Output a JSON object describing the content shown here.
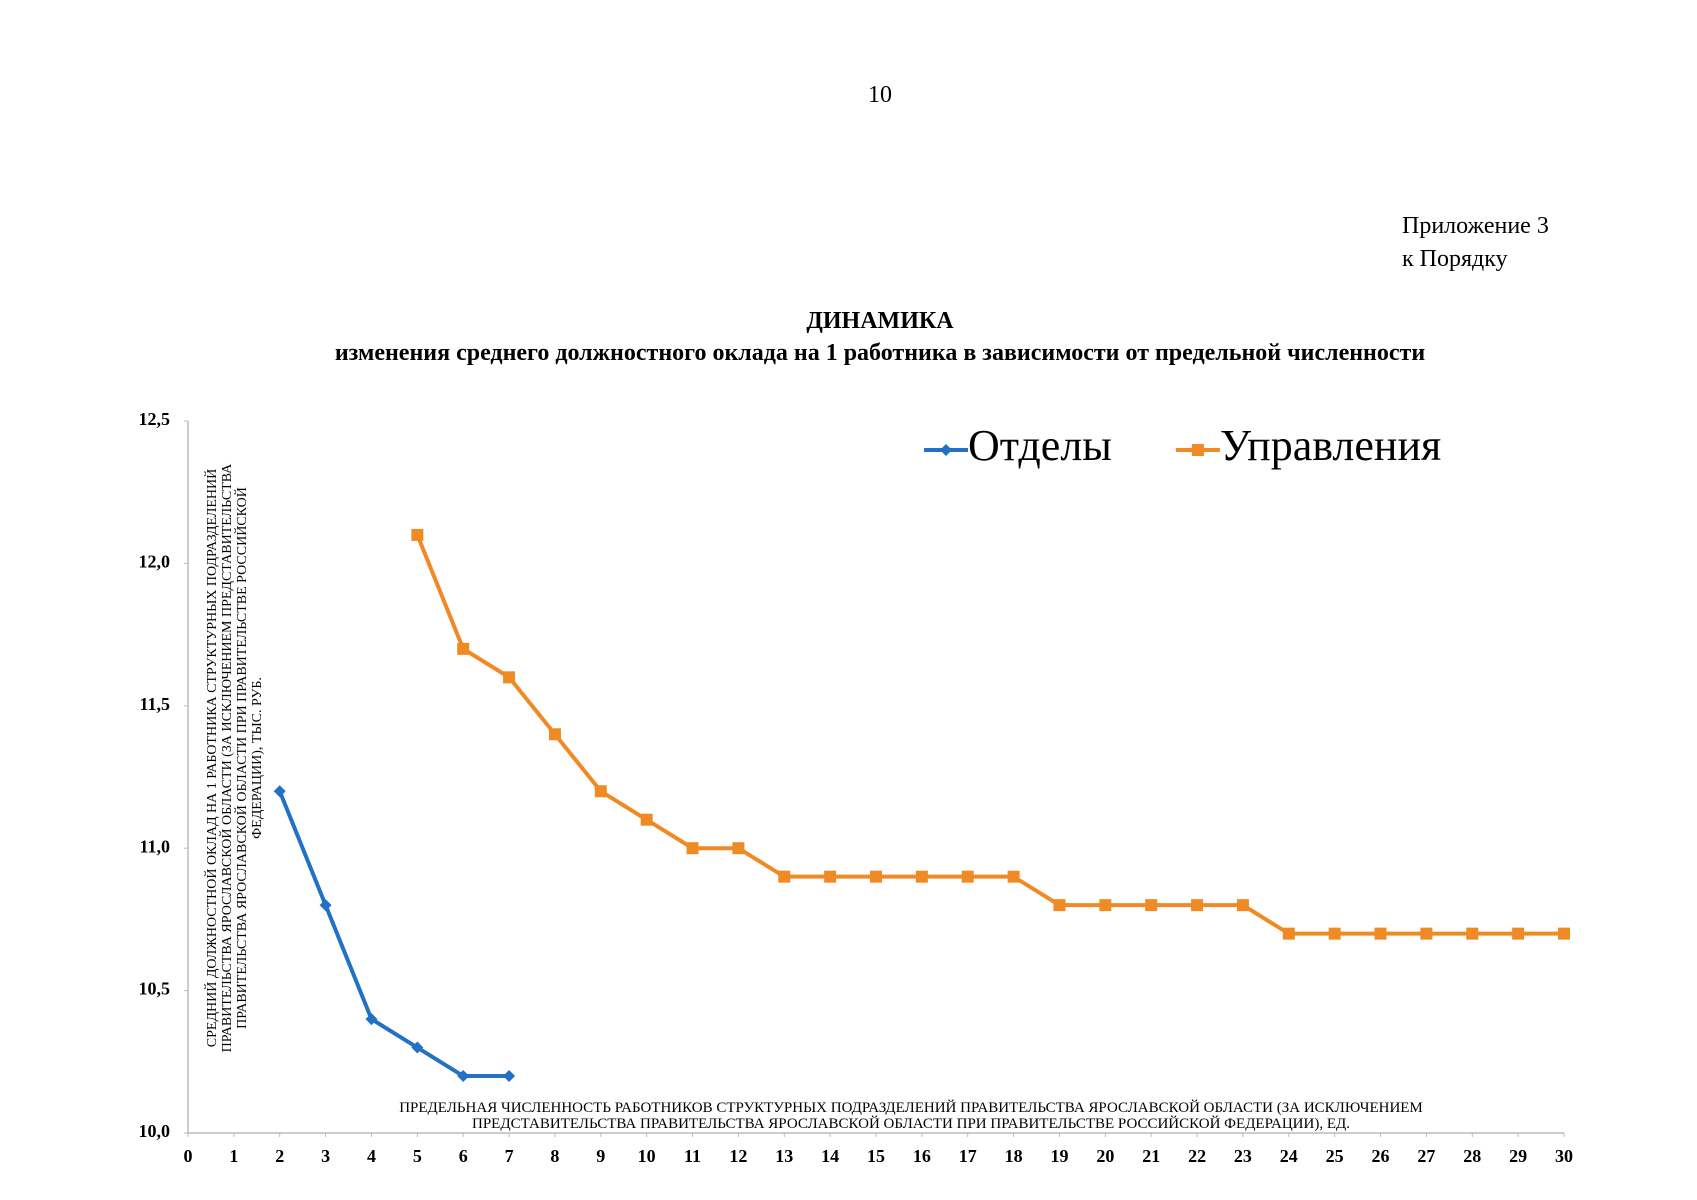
{
  "page_number": "10",
  "appendix": [
    "Приложение 3",
    "к Порядку"
  ],
  "chart_data": {
    "type": "line",
    "title": "ДИНАМИКА",
    "subtitle": "изменения среднего должностного оклада на 1 работника в зависимости от предельной численности",
    "ylabel": "СРЕДНИЙ ДОЛЖНОСТНОЙ ОКЛАД НА 1 РАБОТНИКА СТРУКТУРНЫХ ПОДРАЗДЕЛЕНИЙ ПРАВИТЕЛЬСТВА ЯРОСЛАВСКОЙ ОБЛАСТИ (ЗА ИСКЛЮЧЕНИЕМ ПРЕДСТАВИТЕЛЬСТВА ПРАВИТЕЛЬСТВА ЯРОСЛАВСКОЙ ОБЛАСТИ ПРИ ПРАВИТЕЛЬСТВЕ РОССИЙСКОЙ ФЕДЕРАЦИИ), ТЫС. РУБ.",
    "xlabel": "ПРЕДЕЛЬНАЯ ЧИСЛЕННОСТЬ РАБОТНИКОВ СТРУКТУРНЫХ ПОДРАЗДЕЛЕНИЙ ПРАВИТЕЛЬСТВА ЯРОСЛАВСКОЙ ОБЛАСТИ (ЗА ИСКЛЮЧЕНИЕМ ПРЕДСТАВИТЕЛЬСТВА ПРАВИТЕЛЬСТВА ЯРОСЛАВСКОЙ ОБЛАСТИ ПРИ ПРАВИТЕЛЬСТВЕ РОССИЙСКОЙ ФЕДЕРАЦИИ), ЕД.",
    "xlim": [
      0,
      30
    ],
    "xticks": [
      0,
      1,
      2,
      3,
      4,
      5,
      6,
      7,
      8,
      9,
      10,
      11,
      12,
      13,
      14,
      15,
      16,
      17,
      18,
      19,
      20,
      21,
      22,
      23,
      24,
      25,
      26,
      27,
      28,
      29,
      30
    ],
    "ylim": [
      10,
      12.5
    ],
    "yticks": [
      {
        "value": 10,
        "label": "10,0"
      },
      {
        "value": 10.5,
        "label": "10,5"
      },
      {
        "value": 11,
        "label": "11,0"
      },
      {
        "value": 11.5,
        "label": "11,5"
      },
      {
        "value": 12,
        "label": "12,0"
      },
      {
        "value": 12.5,
        "label": "12,5"
      }
    ],
    "grid": false,
    "legend": "top-right",
    "series": [
      {
        "name": "Отделы",
        "color": "#2271c4",
        "marker": "diamond",
        "x": [
          2,
          3,
          4,
          5,
          6,
          7
        ],
        "values": [
          11.2,
          10.8,
          10.4,
          10.3,
          10.2,
          10.2
        ]
      },
      {
        "name": "Управления",
        "color": "#f08a24",
        "marker": "square",
        "x": [
          5,
          6,
          7,
          8,
          9,
          10,
          11,
          12,
          13,
          14,
          15,
          16,
          17,
          18,
          19,
          20,
          21,
          22,
          23,
          24,
          25,
          26,
          27,
          28,
          29,
          30
        ],
        "values": [
          12.1,
          11.7,
          11.6,
          11.4,
          11.2,
          11.1,
          11.0,
          11.0,
          10.9,
          10.9,
          10.9,
          10.9,
          10.9,
          10.9,
          10.8,
          10.8,
          10.8,
          10.8,
          10.8,
          10.7,
          10.7,
          10.7,
          10.7,
          10.7,
          10.7,
          10.7
        ]
      }
    ]
  }
}
